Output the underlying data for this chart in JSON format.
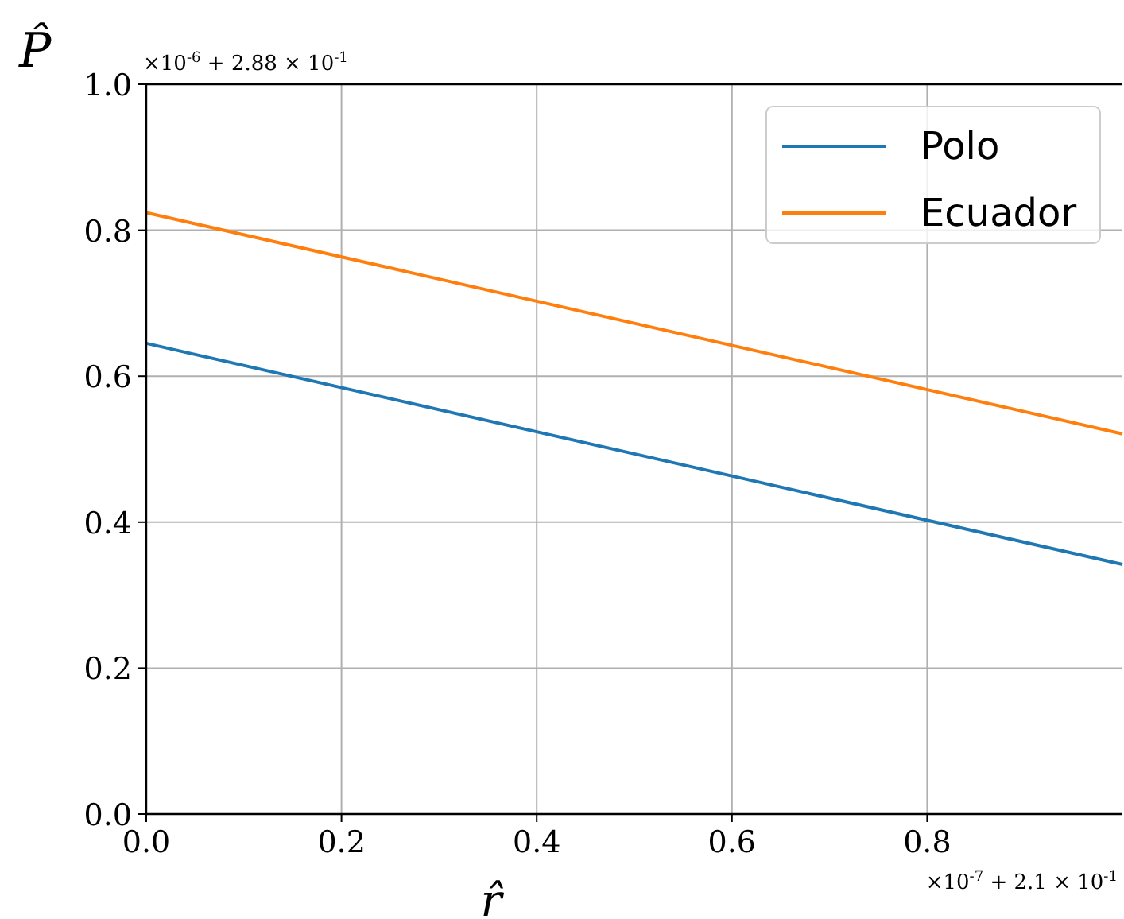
{
  "chart_data": {
    "type": "line",
    "xlabel": "r̂",
    "ylabel": "P̂",
    "x": [
      0,
      1
    ],
    "series": [
      {
        "name": "Polo",
        "color": "#1f77b4",
        "values": [
          0.645,
          0.342
        ]
      },
      {
        "name": "Ecuador",
        "color": "#ff7f0e",
        "values": [
          0.824,
          0.521
        ]
      }
    ],
    "xlim": [
      0,
      1
    ],
    "ylim": [
      0,
      1
    ],
    "xticks": [
      {
        "value": 0,
        "label": "0.0"
      },
      {
        "value": 0.2,
        "label": "0.2"
      },
      {
        "value": 0.4,
        "label": "0.4"
      },
      {
        "value": 0.6,
        "label": "0.6"
      },
      {
        "value": 0.8,
        "label": "0.8"
      }
    ],
    "yticks": [
      {
        "value": 0,
        "label": "0.0"
      },
      {
        "value": 0.2,
        "label": "0.2"
      },
      {
        "value": 0.4,
        "label": "0.4"
      },
      {
        "value": 0.6,
        "label": "0.6"
      },
      {
        "value": 0.8,
        "label": "0.8"
      },
      {
        "value": 1,
        "label": "1.0"
      }
    ],
    "annotations": [
      "×10$^{-6}$ + 2.88 × 10$^{-1}$",
      "×10$^{-7}$ + 2.1 × 10$^{-1}$"
    ],
    "grid": true,
    "legend": "top right",
    "marker": "none",
    "line_style": "solid"
  }
}
